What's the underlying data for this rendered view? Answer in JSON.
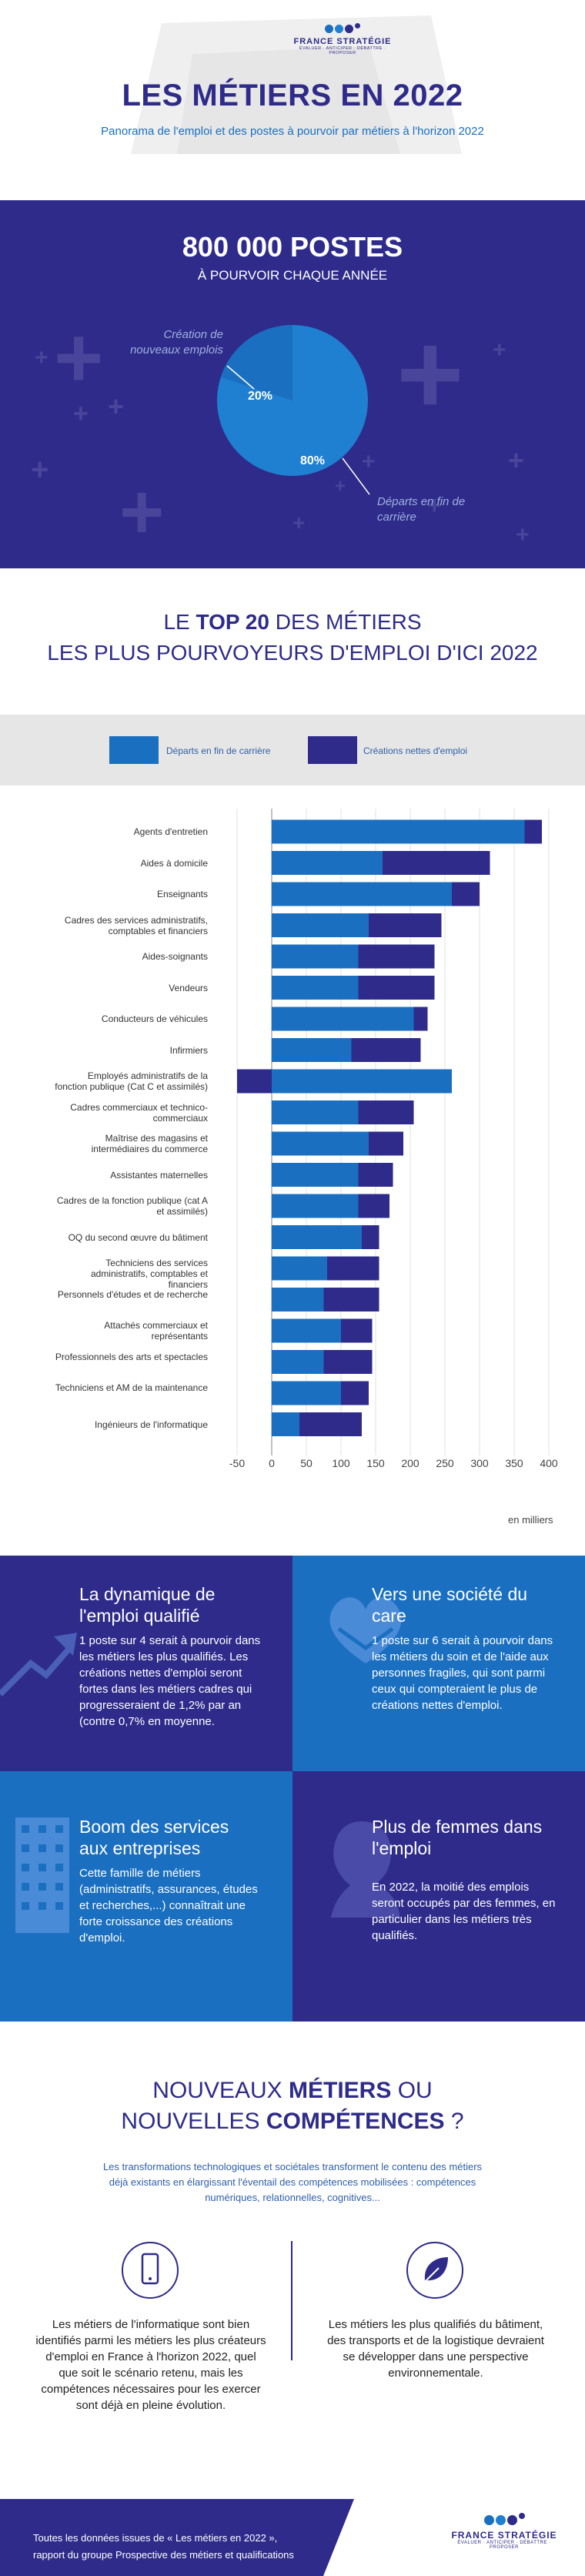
{
  "header": {
    "logo_name": "FRANCE STRATÉGIE",
    "logo_tagline": "ÉVALUER · ANTICIPER · DÉBATTRE · PROPOSER",
    "title": "LES MÉTIERS EN 2022",
    "subtitle": "Panorama de l'emploi et des postes à pourvoir par métiers à l'horizon 2022"
  },
  "stats": {
    "title": "800 000 POSTES",
    "subtitle": "À POURVOIR CHAQUE ANNÉE",
    "label_creation": "Création de nouveaux emplois",
    "label_departs": "Départs en fin de carrière",
    "pct_creation": "20%",
    "pct_departs": "80%",
    "colors": {
      "creation": "#1a6fc0",
      "departs": "#1f7fd0",
      "bg": "#2e2b8a"
    }
  },
  "top20": {
    "title_pre": "LE ",
    "title_bold": "TOP 20",
    "title_post": " DES MÉTIERS",
    "title_line2": "LES PLUS POURVOYEURS D'EMPLOI D'ICI 2022",
    "legend_departs": "Départs en fin de carrière",
    "legend_creations": "Créations nettes d'emploi",
    "unit_label": "en milliers"
  },
  "chart_data": {
    "type": "bar",
    "orientation": "horizontal",
    "stacked": true,
    "xlim": [
      -50,
      400
    ],
    "xticks": [
      -50,
      0,
      50,
      100,
      150,
      200,
      250,
      300,
      350,
      400
    ],
    "xlabel": "en milliers",
    "categories": [
      "Agents d'entretien",
      "Aides à domicile",
      "Enseignants",
      "Cadres des services administratifs, comptables et financiers",
      "Aides-soignants",
      "Vendeurs",
      "Conducteurs de véhicules",
      "Infirmiers",
      "Employés administratifs de la fonction publique (Cat C et assimilés)",
      "Cadres commerciaux et technico-commerciaux",
      "Maîtrise des magasins et intermédiaires du commerce",
      "Assistantes maternelles",
      "Cadres de la fonction publique (cat A et assimilés)",
      "OQ du second œuvre du bâtiment",
      "Techniciens des services administratifs, comptables et financiers",
      "Personnels d'études et de recherche",
      "Attachés commerciaux et représentants",
      "Professionnels des arts et spectacles",
      "Techniciens et AM de la maintenance",
      "Ingénieurs de l'informatique"
    ],
    "series": [
      {
        "name": "Départs en fin de carrière",
        "color": "#1a6fc0",
        "values": [
          365,
          160,
          260,
          140,
          125,
          125,
          205,
          115,
          260,
          125,
          140,
          125,
          125,
          130,
          80,
          75,
          100,
          75,
          100,
          40
        ]
      },
      {
        "name": "Créations nettes d'emploi",
        "color": "#2e2b8a",
        "values": [
          25,
          155,
          40,
          105,
          110,
          110,
          20,
          100,
          -50,
          80,
          50,
          50,
          45,
          25,
          75,
          80,
          45,
          70,
          40,
          90
        ]
      }
    ]
  },
  "quadrants": [
    {
      "title": "La dynamique de l'emploi qualifié",
      "text": "1 poste sur 4 serait à pourvoir dans les métiers les plus qualifiés. Les créations nettes d'emploi seront fortes dans les métiers cadres qui progresseraient de 1,2% par an (contre 0,7% en moyenne."
    },
    {
      "title": "Vers une société du care",
      "text": "1 poste sur 6 serait à pourvoir dans les métiers du soin et de l'aide aux personnes fragiles, qui sont parmi ceux qui compteraient le plus de créations nettes d'emploi."
    },
    {
      "title": "Boom des services aux entreprises",
      "text": "Cette famille de métiers (administratifs, assurances, études et recherches,...) connaîtrait une forte croissance des créations d'emploi."
    },
    {
      "title": "Plus de femmes dans l'emploi",
      "text": "En 2022, la moitié des emplois seront occupés par des femmes, en particulier dans les métiers très qualifiés."
    }
  ],
  "new_jobs": {
    "title_pre": "NOUVEAUX ",
    "title_bold1": "MÉTIERS",
    "title_mid": " OU",
    "title2_pre": "NOUVELLES ",
    "title2_bold": "COMPÉTENCES",
    "title2_post": " ?",
    "intro": "Les transformations technologiques et sociétales transforment le contenu des métiers déjà existants en élargissant l'éventail des compétences mobilisées : compétences numériques, relationnelles, cognitives...",
    "left_text": "Les métiers de l'informatique sont bien identifiés parmi les métiers les plus créateurs d'emploi en France à l'horizon 2022, quel que soit le scénario retenu, mais les compétences nécessaires pour les exercer sont déjà en pleine évolution.",
    "right_text": "Les métiers les plus qualifiés du bâtiment, des transports et de la logistique devraient se développer dans une perspective environnementale."
  },
  "footer": {
    "text_line1": "Toutes les données issues de « Les métiers en 2022 »,",
    "text_line2": "rapport du groupe Prospective des métiers et qualifications",
    "logo_name": "FRANCE STRATÉGIE",
    "logo_tagline": "ÉVALUER · ANTICIPER · DÉBATTRE · PROPOSER"
  }
}
